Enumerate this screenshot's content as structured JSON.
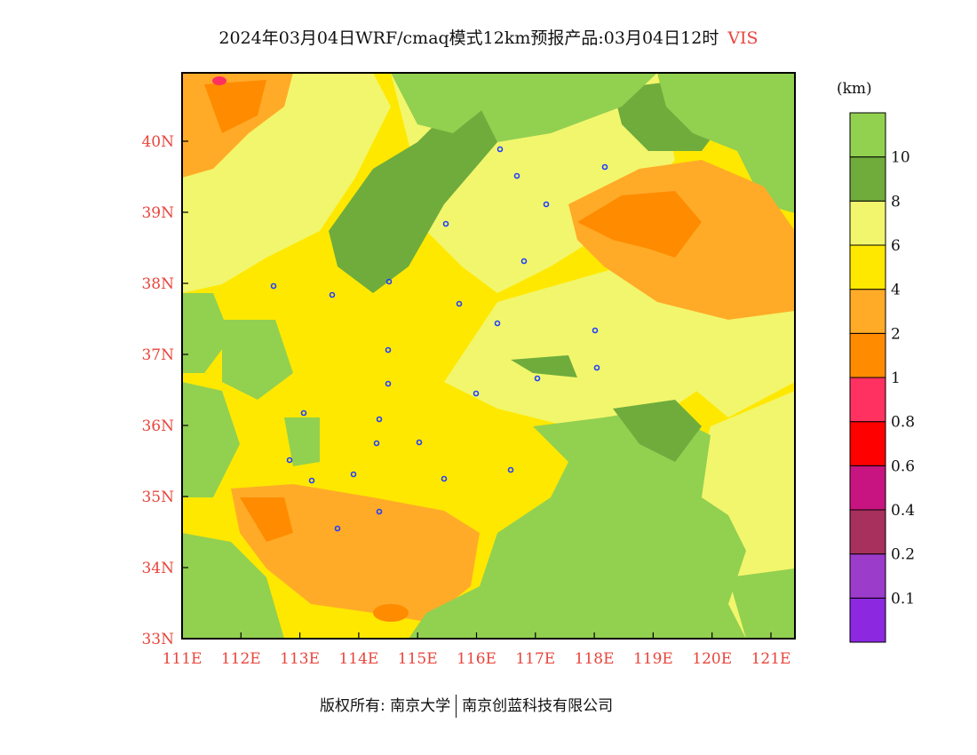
{
  "header": {
    "title": "2024年03月04日WRF/cmaq模式12km预报产品:03月04日12时",
    "variable": "VIS"
  },
  "colorbar": {
    "units": "(km)",
    "bins": [
      {
        "color": "#8b28e0"
      },
      {
        "color": "#9c3ccb"
      },
      {
        "color": "#a7305c"
      },
      {
        "color": "#c81480"
      },
      {
        "color": "#ff0000"
      },
      {
        "color": "#ff3160"
      },
      {
        "color": "#ff8b00"
      },
      {
        "color": "#ffab28"
      },
      {
        "color": "#ffe800"
      },
      {
        "color": "#f2f66c"
      },
      {
        "color": "#6fac3c"
      },
      {
        "color": "#92d050"
      }
    ],
    "labels": [
      "0.1",
      "0.2",
      "0.4",
      "0.6",
      "0.8",
      "1",
      "2",
      "4",
      "6",
      "8",
      "10"
    ]
  },
  "axes": {
    "x_ticks": [
      "111E",
      "112E",
      "113E",
      "114E",
      "115E",
      "116E",
      "117E",
      "118E",
      "119E",
      "120E",
      "121E"
    ],
    "y_ticks": [
      "33N",
      "34N",
      "35N",
      "36N",
      "37N",
      "38N",
      "39N",
      "40N"
    ]
  },
  "footer": {
    "left": "版权所有: 南京大学",
    "right": "南京创蓝科技有限公司"
  }
}
